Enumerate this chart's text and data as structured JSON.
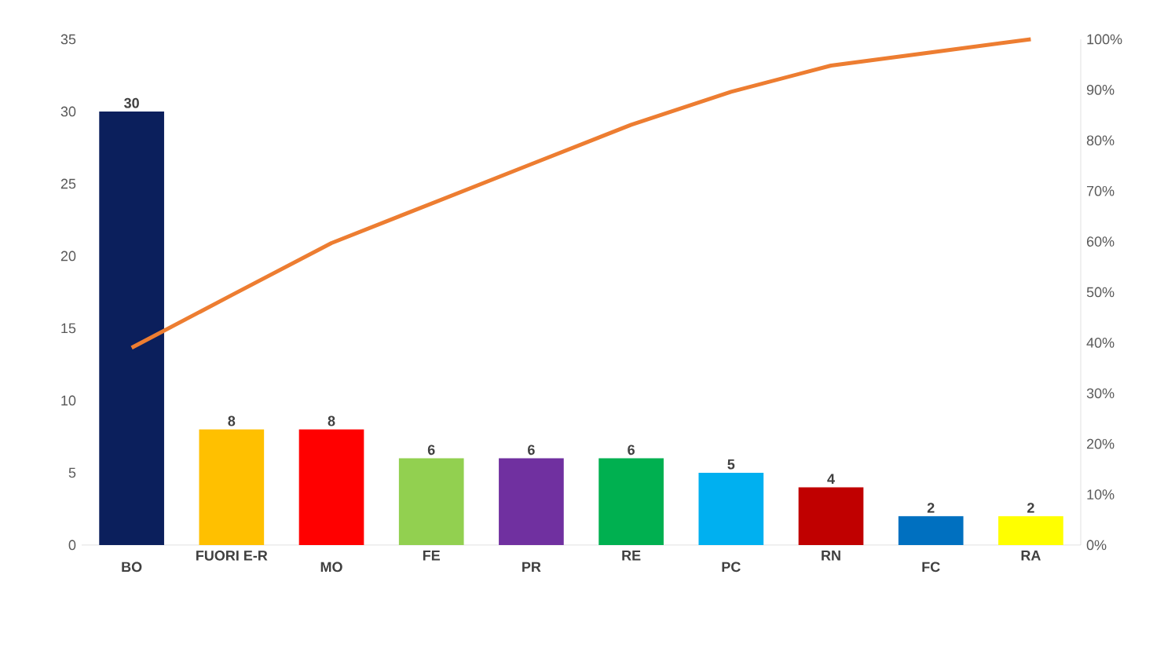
{
  "chart_data": {
    "type": "bar",
    "categories": [
      "BO",
      "FUORI E-R",
      "MO",
      "FE",
      "PR",
      "RE",
      "PC",
      "RN",
      "FC",
      "RA"
    ],
    "series": [
      {
        "values": [
          30,
          8,
          8,
          6,
          6,
          6,
          5,
          4,
          2,
          2
        ],
        "colors": [
          "#0b1f5c",
          "#ffc000",
          "#ff0000",
          "#92d050",
          "#7030a0",
          "#00b050",
          "#00b0f0",
          "#c00000",
          "#0070c0",
          "#ffff00"
        ],
        "value_labels": [
          "30",
          "8",
          "8",
          "6",
          "6",
          "6",
          "5",
          "4",
          "2",
          "2"
        ]
      },
      {
        "type": "line",
        "axis": "y2",
        "color": "#ed7d31",
        "values": [
          39,
          49.4,
          59.7,
          67.5,
          75.3,
          83.1,
          89.6,
          94.8,
          97.4,
          100
        ]
      }
    ],
    "ylim": [
      0,
      35
    ],
    "yticks": [
      0,
      5,
      10,
      15,
      20,
      25,
      30,
      35
    ],
    "y2lim": [
      0,
      100
    ],
    "y2ticks": [
      {
        "value": 0,
        "label": "0%"
      },
      {
        "value": 10,
        "label": "10%"
      },
      {
        "value": 20,
        "label": "20%"
      },
      {
        "value": 30,
        "label": "30%"
      },
      {
        "value": 40,
        "label": "40%"
      },
      {
        "value": 50,
        "label": "50%"
      },
      {
        "value": 60,
        "label": "60%"
      },
      {
        "value": 70,
        "label": "70%"
      },
      {
        "value": 80,
        "label": "80%"
      },
      {
        "value": 90,
        "label": "90%"
      },
      {
        "value": 100,
        "label": "100%"
      }
    ],
    "grid": false,
    "marker": "none",
    "line_style": "solid"
  }
}
